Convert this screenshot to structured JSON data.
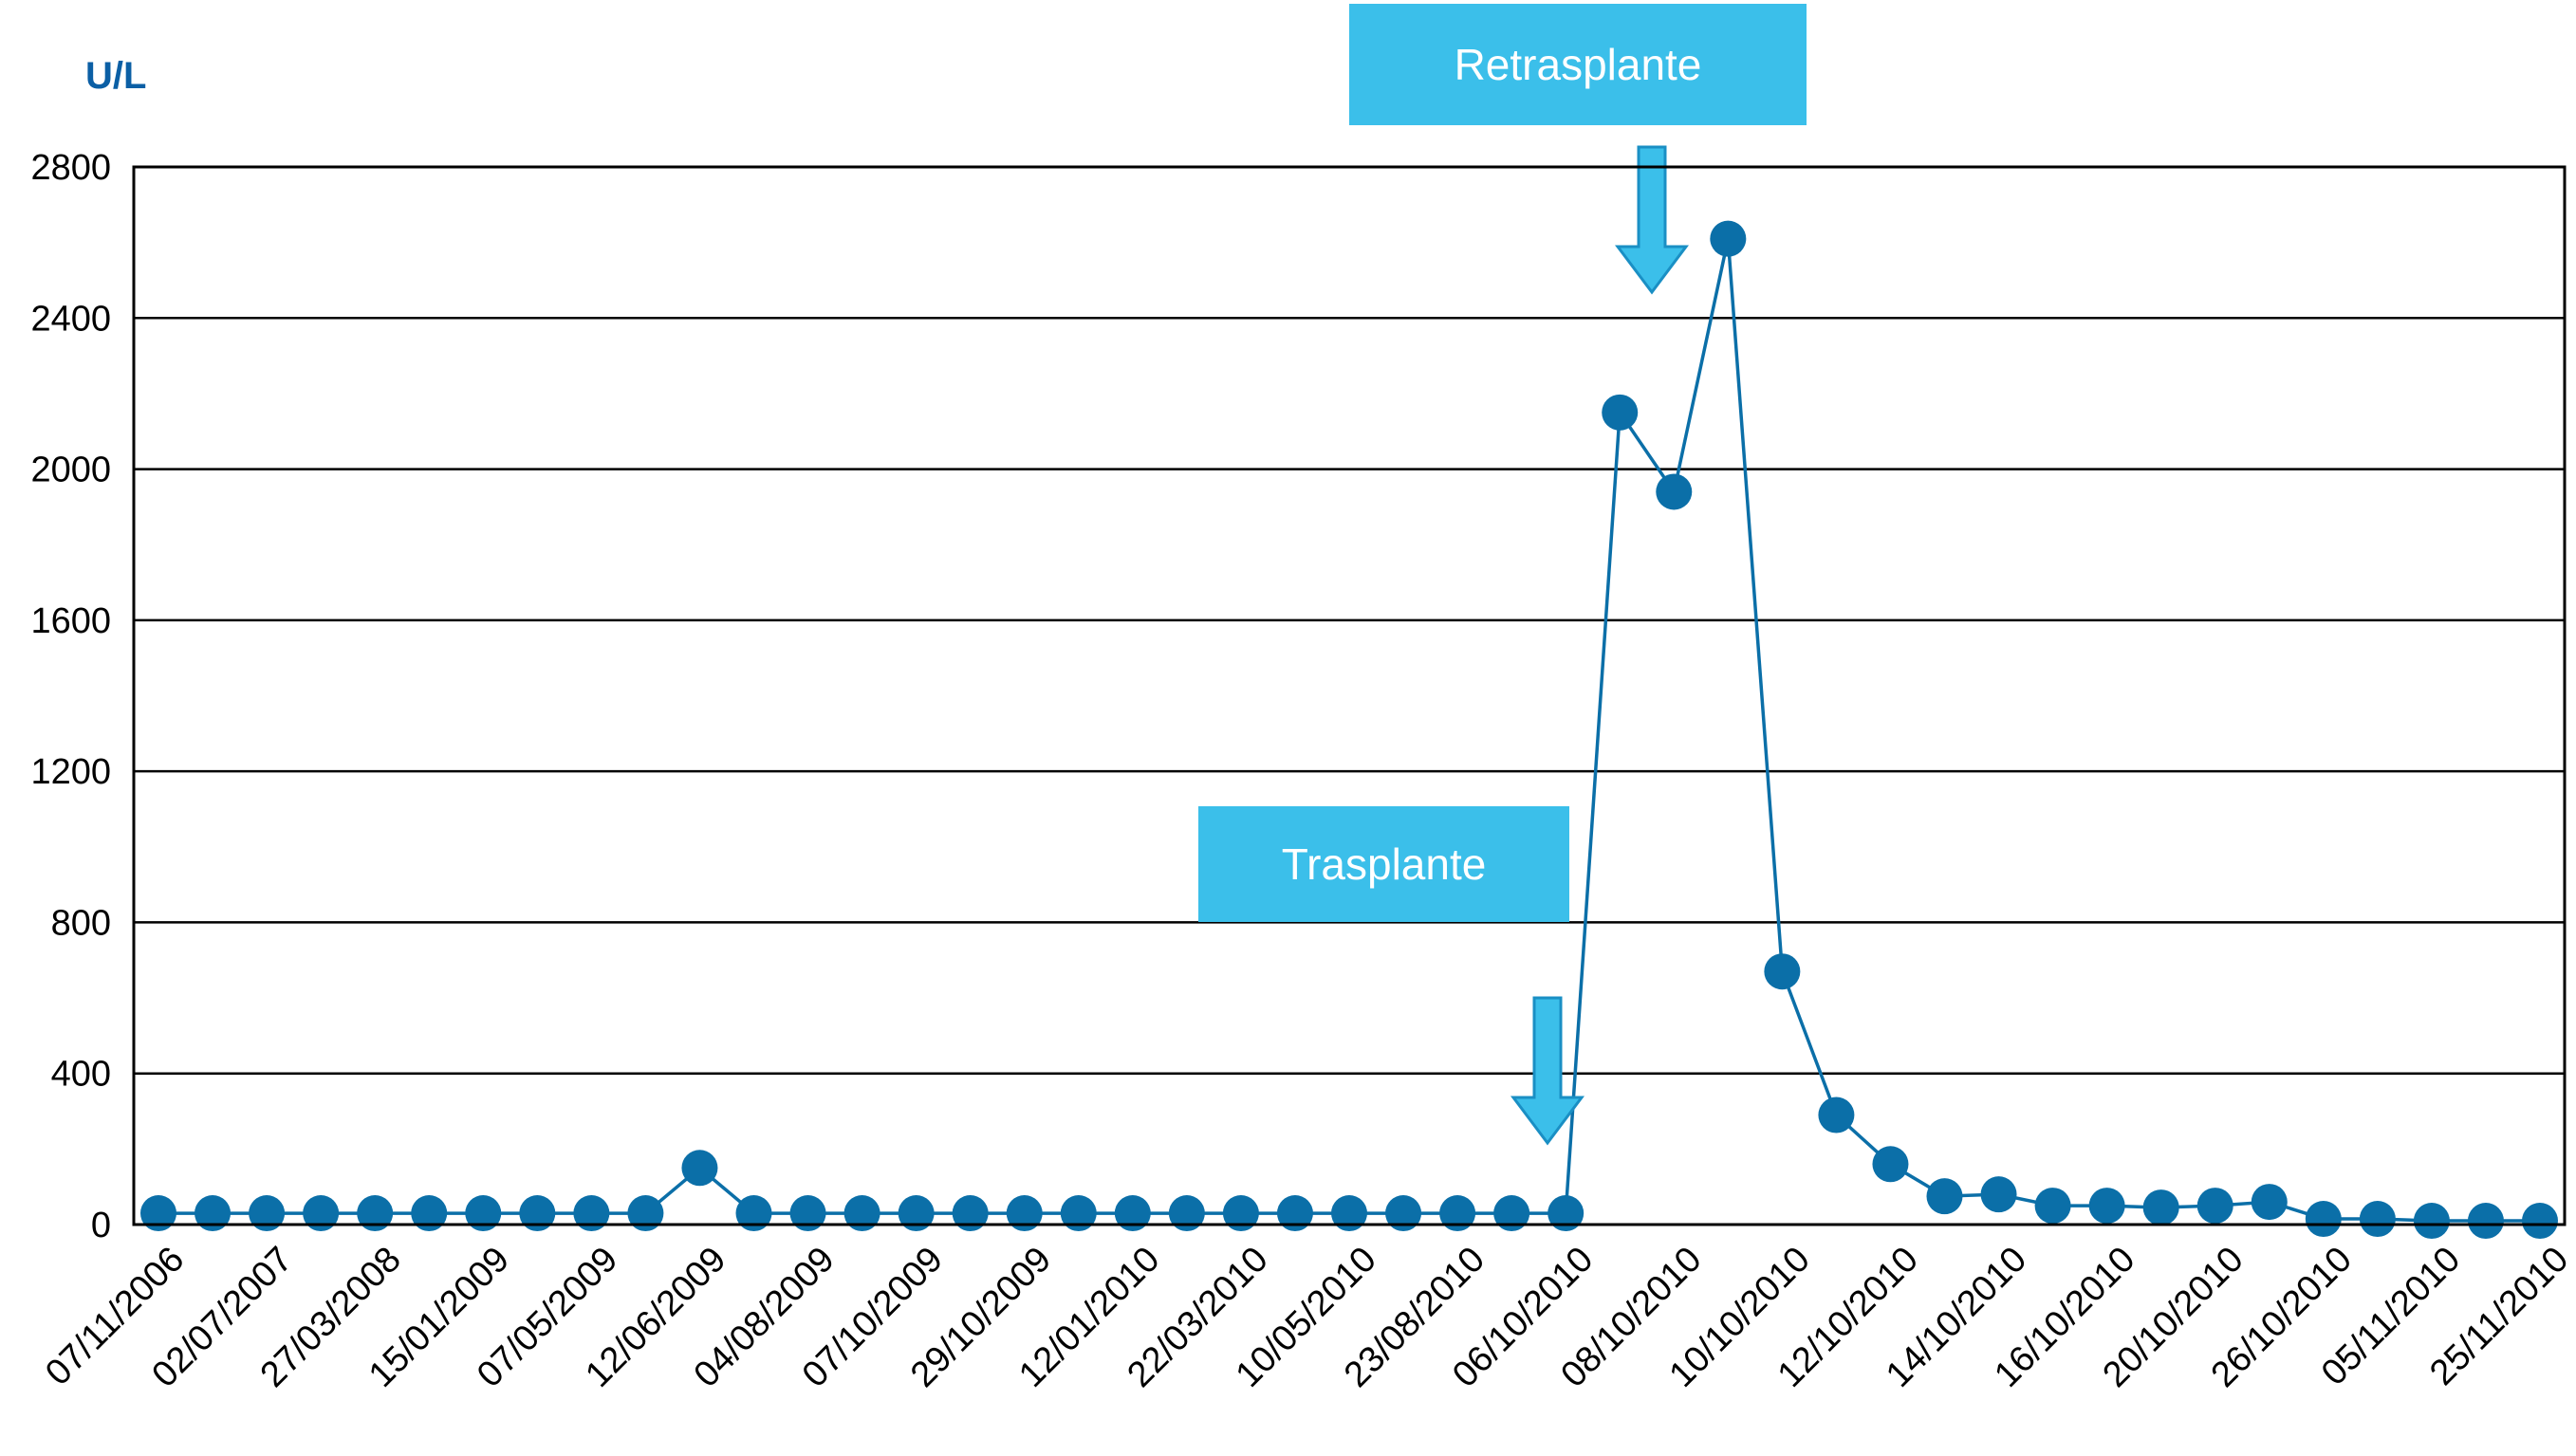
{
  "chart_data": {
    "type": "line",
    "title": "",
    "xlabel": "",
    "ylabel": "U/L",
    "ylim": [
      0,
      2800
    ],
    "yticks": [
      0,
      400,
      800,
      1200,
      1600,
      2000,
      2400,
      2800
    ],
    "x_tick_labels": [
      "07/11/2006",
      "02/07/2007",
      "27/03/2008",
      "15/01/2009",
      "07/05/2009",
      "12/06/2009",
      "04/08/2009",
      "07/10/2009",
      "29/10/2009",
      "12/01/2010",
      "22/03/2010",
      "10/05/2010",
      "23/08/2010",
      "06/10/2010",
      "08/10/2010",
      "10/10/2010",
      "12/10/2010",
      "14/10/2010",
      "16/10/2010",
      "20/10/2010",
      "26/10/2010",
      "05/11/2010",
      "25/11/2010"
    ],
    "grid": true,
    "series": [
      {
        "values": [
          30,
          30,
          30,
          30,
          30,
          30,
          30,
          30,
          30,
          30,
          150,
          30,
          30,
          30,
          30,
          30,
          30,
          30,
          30,
          30,
          30,
          30,
          30,
          30,
          30,
          30,
          30,
          2150,
          1940,
          2610,
          670,
          290,
          160,
          75,
          80,
          50,
          50,
          45,
          50,
          60,
          15,
          15,
          10,
          10,
          10
        ]
      }
    ],
    "annotations": [
      {
        "text": "Trasplante",
        "point_index": 26
      },
      {
        "text": "Retrasplante",
        "point_index": 28
      }
    ]
  },
  "colors": {
    "series": "#0b6fa8",
    "unit_label": "#0b5fa5",
    "annotation_box": "#3bbfea",
    "annotation_arrow": "#3bbfea",
    "annotation_arrow_stroke": "#1a8fc4",
    "grid": "#000000"
  }
}
